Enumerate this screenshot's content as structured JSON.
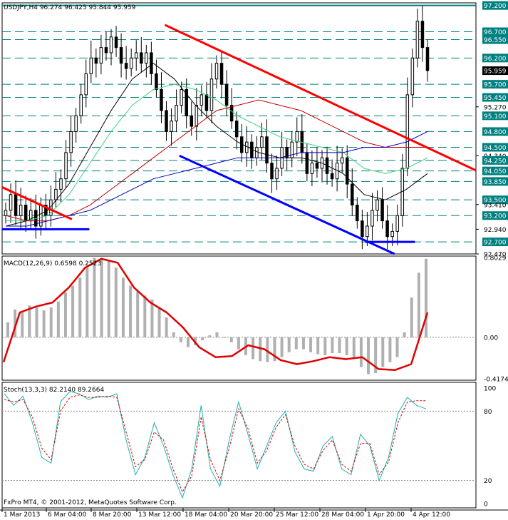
{
  "panels": {
    "main_header": "USDJPY,H4  96.274 96.425 95.844 95.959",
    "macd_header": "MACD(12,26,9) 0.6598 0.2523",
    "stoch_header": "Stoch(13,3,3) 82.2140 89.2664",
    "copyright": "FxPro MT4, © 2001-2012, MetaQuotes Software Corp."
  },
  "chart_data": [
    {
      "type": "candlestick",
      "symbol": "USDJPY",
      "timeframe": "H4",
      "ohlc_header": {
        "open": 96.274,
        "high": 96.425,
        "low": 95.844,
        "close": 95.959
      },
      "ylim": [
        92.47,
        97.25
      ],
      "price_axis_labels": [
        {
          "value": 97.2,
          "text": "97.200",
          "boxed": true,
          "color": "#008080"
        },
        {
          "value": 96.7,
          "text": "96.700",
          "boxed": true,
          "color": "#008080"
        },
        {
          "value": 96.55,
          "text": "96.550",
          "boxed": true,
          "color": "#008080"
        },
        {
          "value": 96.2,
          "text": "96.200",
          "boxed": true,
          "color": "#008080"
        },
        {
          "value": 95.959,
          "text": "95.959",
          "boxed": true,
          "color": "#000000"
        },
        {
          "value": 95.7,
          "text": "95.700",
          "boxed": true,
          "color": "#008080"
        },
        {
          "value": 95.45,
          "text": "95.450",
          "boxed": true,
          "color": "#008080"
        },
        {
          "value": 95.27,
          "text": "95.270",
          "boxed": false
        },
        {
          "value": 95.1,
          "text": "95.100",
          "boxed": true,
          "color": "#008080"
        },
        {
          "value": 94.8,
          "text": "94.800",
          "boxed": true,
          "color": "#008080"
        },
        {
          "value": 94.5,
          "text": "94.500",
          "boxed": true,
          "color": "#008080"
        },
        {
          "value": 94.34,
          "text": "94.340",
          "boxed": false
        },
        {
          "value": 94.25,
          "text": "94.250",
          "boxed": true,
          "color": "#008080"
        },
        {
          "value": 94.05,
          "text": "94.050",
          "boxed": true,
          "color": "#008080"
        },
        {
          "value": 93.85,
          "text": "93.850",
          "boxed": true,
          "color": "#008080"
        },
        {
          "value": 93.5,
          "text": "93.500",
          "boxed": true,
          "color": "#008080"
        },
        {
          "value": 93.41,
          "text": "93.410",
          "boxed": false
        },
        {
          "value": 93.2,
          "text": "93.200",
          "boxed": true,
          "color": "#008080"
        },
        {
          "value": 92.94,
          "text": "92.940",
          "boxed": false
        },
        {
          "value": 92.7,
          "text": "92.700",
          "boxed": true,
          "color": "#008080"
        },
        {
          "value": 92.47,
          "text": "92.470",
          "boxed": false
        }
      ],
      "support_resistance_levels": [
        97.2,
        96.7,
        96.55,
        96.2,
        95.7,
        95.45,
        95.1,
        94.8,
        94.5,
        94.25,
        94.05,
        93.85,
        93.5,
        93.2,
        92.7
      ],
      "closes": [
        93.3,
        93.6,
        93.2,
        93.4,
        93.1,
        93.3,
        93.0,
        93.4,
        93.2,
        93.5,
        93.7,
        93.9,
        94.4,
        94.8,
        95.1,
        95.5,
        95.9,
        96.2,
        96.1,
        96.4,
        96.3,
        96.6,
        96.4,
        96.1,
        96.0,
        96.2,
        96.3,
        96.1,
        96.3,
        95.9,
        95.6,
        95.2,
        94.8,
        95.0,
        95.3,
        95.6,
        95.1,
        94.9,
        95.3,
        95.5,
        95.2,
        95.8,
        96.1,
        95.7,
        95.3,
        95.0,
        94.7,
        94.4,
        94.6,
        94.3,
        94.5,
        94.7,
        94.2,
        93.9,
        94.1,
        94.5,
        94.3,
        94.6,
        94.8,
        94.4,
        94.0,
        94.2,
        94.1,
        94.3,
        94.0,
        93.9,
        94.2,
        94.3,
        93.8,
        93.4,
        93.1,
        92.8,
        93.0,
        93.3,
        93.5,
        93.1,
        92.8,
        92.9,
        93.2,
        94.1,
        95.5,
        96.2,
        96.9,
        96.4,
        95.96
      ],
      "overlays": {
        "ma_black": [
          93.0,
          93.1,
          93.3,
          93.8,
          94.5,
          95.2,
          95.8,
          96.1,
          95.8,
          95.3,
          94.9,
          94.6,
          94.4,
          94.3,
          94.3,
          94.2,
          94.0,
          93.6,
          93.5,
          93.7,
          94.0
        ],
        "ma_green": [
          93.1,
          93.1,
          93.2,
          93.6,
          94.2,
          94.8,
          95.3,
          95.6,
          95.7,
          95.6,
          95.4,
          95.1,
          94.9,
          94.7,
          94.6,
          94.5,
          94.4,
          94.1,
          94.0,
          94.1,
          94.3
        ],
        "ma_red": [
          93.2,
          93.1,
          93.1,
          93.2,
          93.4,
          93.7,
          94.0,
          94.3,
          94.6,
          94.9,
          95.2,
          95.3,
          95.4,
          95.3,
          95.2,
          95.0,
          94.8,
          94.6,
          94.5,
          94.5,
          94.5
        ],
        "ma_blue": [
          93.0,
          93.0,
          93.1,
          93.2,
          93.3,
          93.5,
          93.7,
          93.9,
          94.0,
          94.1,
          94.2,
          94.3,
          94.3,
          94.3,
          94.4,
          94.4,
          94.4,
          94.5,
          94.5,
          94.6,
          94.8
        ]
      },
      "trendlines": [
        {
          "color": "#ff0000",
          "from": [
            0,
            93.74
          ],
          "to": [
            24,
            93.13
          ]
        },
        {
          "color": "#ff0000",
          "from": [
            56,
            96.83
          ],
          "to": [
            163,
            94.06
          ]
        },
        {
          "color": "#0000ff",
          "from": [
            0,
            92.94
          ],
          "to": [
            30,
            92.94
          ]
        },
        {
          "color": "#0000ff",
          "from": [
            61,
            94.34
          ],
          "to": [
            135,
            92.47
          ]
        },
        {
          "color": "#0000ff",
          "from": [
            125,
            92.7
          ],
          "to": [
            142,
            92.7
          ]
        }
      ]
    },
    {
      "type": "histogram+line",
      "indicator": "MACD(12,26,9)",
      "values": {
        "macd": 0.6598,
        "signal": 0.2523
      },
      "ylim": [
        -0.4174,
        0.8029
      ],
      "axis_labels": [
        "0.8029",
        "0.00",
        "-0.4174"
      ],
      "histogram": [
        0.15,
        0.28,
        0.25,
        0.32,
        0.3,
        0.27,
        0.3,
        0.36,
        0.45,
        0.52,
        0.6,
        0.7,
        0.8,
        0.8,
        0.78,
        0.7,
        0.6,
        0.52,
        0.46,
        0.42,
        0.38,
        0.3,
        0.2,
        0.05,
        -0.05,
        -0.1,
        -0.08,
        -0.03,
        0.02,
        0.05,
        0.0,
        -0.05,
        -0.12,
        -0.18,
        -0.22,
        -0.24,
        -0.25,
        -0.24,
        -0.2,
        -0.15,
        -0.12,
        -0.12,
        -0.15,
        -0.17,
        -0.18,
        -0.16,
        -0.16,
        -0.18,
        -0.2,
        -0.3,
        -0.37,
        -0.36,
        -0.3,
        -0.25,
        -0.2,
        0.05,
        0.4,
        0.65,
        0.79
      ],
      "signal_line": [
        -0.25,
        0.25,
        0.31,
        0.35,
        0.5,
        0.7,
        0.79,
        0.75,
        0.5,
        0.35,
        0.25,
        0.1,
        -0.1,
        -0.2,
        -0.19,
        -0.08,
        -0.12,
        -0.23,
        -0.27,
        -0.24,
        -0.2,
        -0.22,
        -0.2,
        -0.32,
        -0.33,
        -0.27,
        0.25
      ]
    },
    {
      "type": "line",
      "indicator": "Stoch(13,3,3)",
      "values": {
        "main": 82.214,
        "signal": 89.2664
      },
      "ylim": [
        0,
        100
      ],
      "axis_labels": [
        "100",
        "80",
        "20",
        "0"
      ],
      "levels": [
        80,
        20
      ],
      "main": [
        95,
        85,
        93,
        70,
        40,
        35,
        88,
        97,
        95,
        90,
        93,
        92,
        95,
        55,
        25,
        40,
        70,
        50,
        25,
        5,
        30,
        85,
        30,
        15,
        55,
        88,
        60,
        30,
        50,
        70,
        80,
        45,
        30,
        28,
        50,
        58,
        30,
        25,
        60,
        50,
        20,
        40,
        78,
        92,
        85,
        82
      ],
      "signal": [
        90,
        88,
        90,
        75,
        48,
        38,
        80,
        92,
        94,
        92,
        92,
        93,
        92,
        62,
        32,
        38,
        62,
        55,
        30,
        10,
        24,
        75,
        38,
        20,
        48,
        82,
        65,
        35,
        46,
        66,
        77,
        50,
        34,
        30,
        46,
        55,
        34,
        28,
        52,
        52,
        25,
        36,
        70,
        88,
        89,
        89
      ]
    }
  ],
  "time_axis": {
    "labels": [
      "1 Mar 2013",
      "6 Mar 04:00",
      "8 Mar 20:00",
      "13 Mar 12:00",
      "18 Mar 04:00",
      "20 Mar 20:00",
      "25 Mar 12:00",
      "28 Mar 04:00",
      "1 Apr 20:00",
      "4 Apr 12:00"
    ]
  }
}
